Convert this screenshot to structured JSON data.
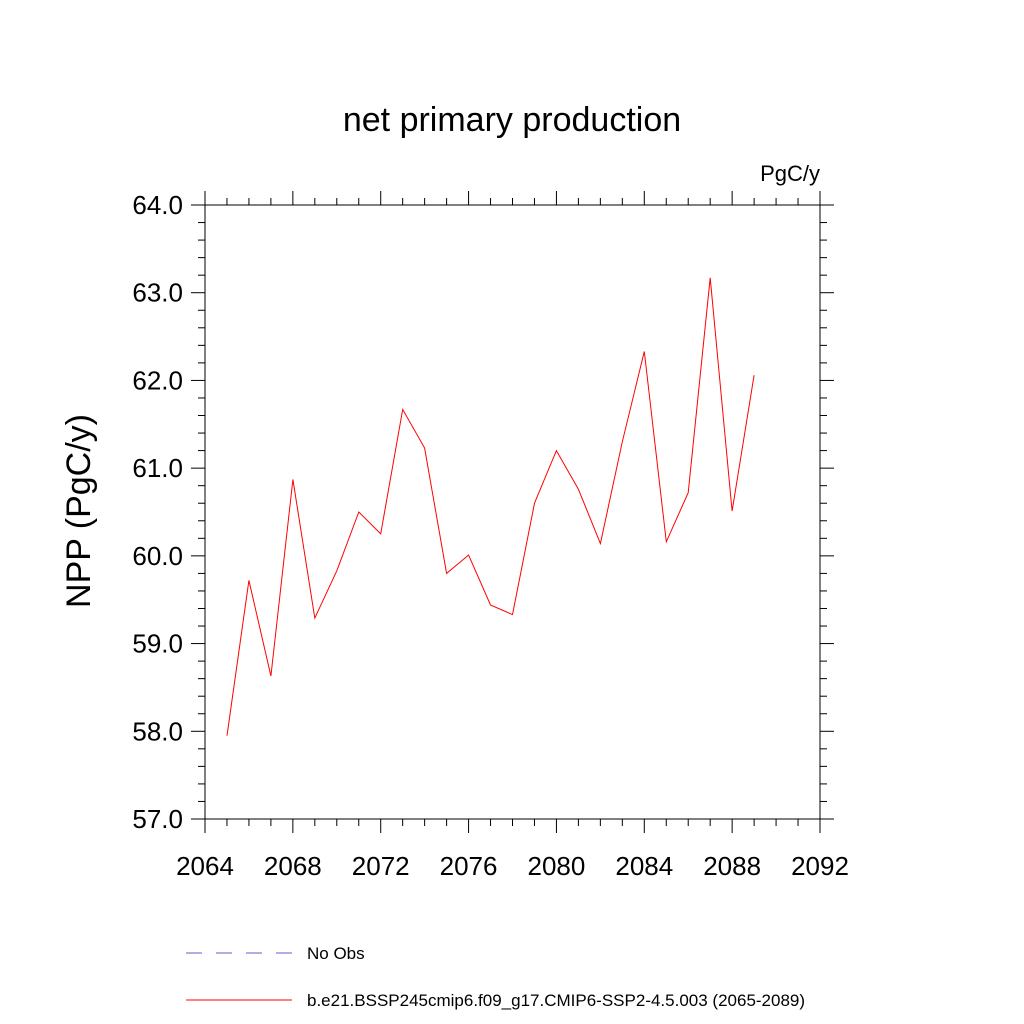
{
  "chart_data": {
    "type": "line",
    "title": "net primary production",
    "units_label": "PgC/y",
    "xlabel": "",
    "ylabel": "NPP  (PgC/y)",
    "xlim": [
      2064,
      2092
    ],
    "ylim": [
      57.0,
      64.0
    ],
    "x_ticks": [
      "2064",
      "2068",
      "2072",
      "2076",
      "2080",
      "2084",
      "2088",
      "2092"
    ],
    "y_ticks": [
      "57.0",
      "58.0",
      "59.0",
      "60.0",
      "61.0",
      "62.0",
      "63.0",
      "64.0"
    ],
    "grid": false,
    "legend_position": "bottom",
    "series": [
      {
        "name": "b.e21.BSSP245cmip6.f09_g17.CMIP6-SSP2-4.5.003 (2065-2089)",
        "color": "#ff0000",
        "line_style": "solid",
        "x": [
          2065,
          2066,
          2067,
          2068,
          2069,
          2070,
          2071,
          2072,
          2073,
          2074,
          2075,
          2076,
          2077,
          2078,
          2079,
          2080,
          2081,
          2082,
          2083,
          2084,
          2085,
          2086,
          2087,
          2088,
          2089
        ],
        "y": [
          57.95,
          59.72,
          58.63,
          60.87,
          59.29,
          59.83,
          60.5,
          60.25,
          61.67,
          61.23,
          59.8,
          60.01,
          59.44,
          59.33,
          60.6,
          61.2,
          60.76,
          60.14,
          61.3,
          62.33,
          60.16,
          60.72,
          63.17,
          60.51,
          62.06
        ]
      }
    ],
    "legend": [
      {
        "label": "No Obs",
        "color": "#6a5acd",
        "line_style": "dashed"
      },
      {
        "label": "b.e21.BSSP245cmip6.f09_g17.CMIP6-SSP2-4.5.003 (2065-2089)",
        "color": "#ff0000",
        "line_style": "solid"
      }
    ]
  }
}
